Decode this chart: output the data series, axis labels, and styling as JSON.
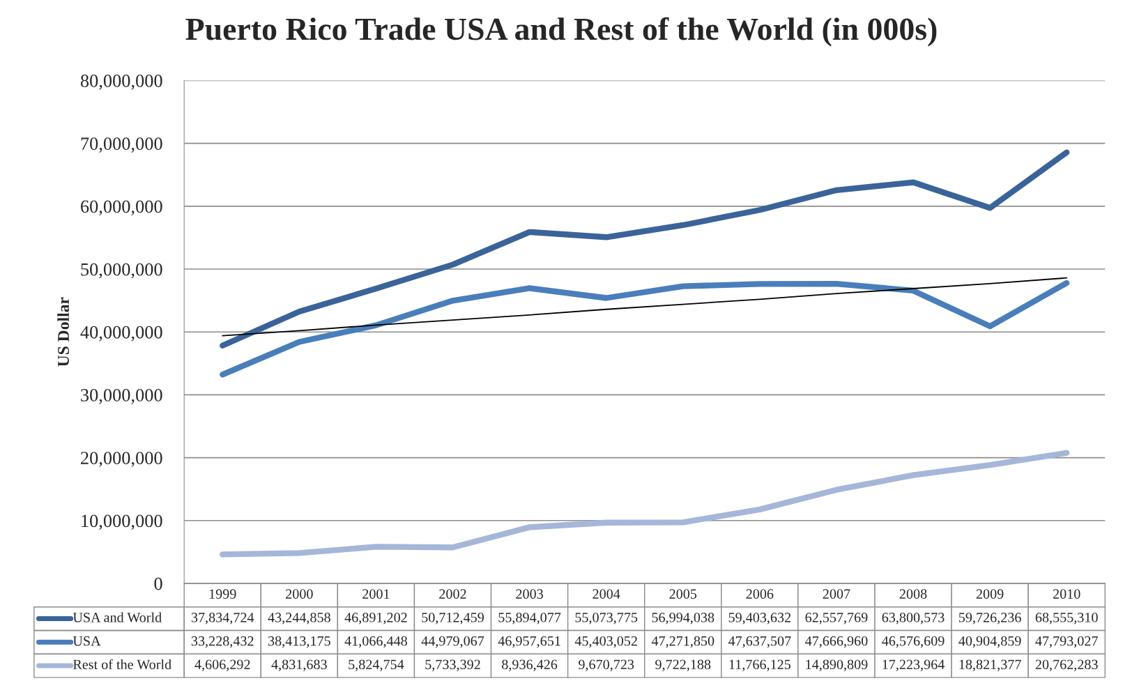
{
  "chart_data": {
    "type": "line",
    "title": "Puerto Rico Trade USA and Rest of the World (in 000s)",
    "ylabel": "US Dollar",
    "categories": [
      "1999",
      "2000",
      "2001",
      "2002",
      "2003",
      "2004",
      "2005",
      "2006",
      "2007",
      "2008",
      "2009",
      "2010"
    ],
    "series": [
      {
        "name": "USA and World",
        "color": "#3a6399",
        "values": [
          37834724,
          43244858,
          46891202,
          50712459,
          55894077,
          55073775,
          56994038,
          59403632,
          62557769,
          63800573,
          59726236,
          68555310
        ],
        "value_labels": [
          "37,834,724",
          "43,244,858",
          "46,891,202",
          "50,712,459",
          "55,894,077",
          "55,073,775",
          "56,994,038",
          "59,403,632",
          "62,557,769",
          "63,800,573",
          "59,726,236",
          "68,555,310"
        ]
      },
      {
        "name": "USA",
        "color": "#4a7ebb",
        "values": [
          33228432,
          38413175,
          41066448,
          44979067,
          46957651,
          45403052,
          47271850,
          47637507,
          47666960,
          46576609,
          40904859,
          47793027
        ],
        "value_labels": [
          "33,228,432",
          "38,413,175",
          "41,066,448",
          "44,979,067",
          "46,957,651",
          "45,403,052",
          "47,271,850",
          "47,637,507",
          "47,666,960",
          "46,576,609",
          "40,904,859",
          "47,793,027"
        ]
      },
      {
        "name": "Rest of the World",
        "color": "#a5b6d9",
        "values": [
          4606292,
          4831683,
          5824754,
          5733392,
          8936426,
          9670723,
          9722188,
          11766125,
          14890809,
          17223964,
          18821377,
          20762283
        ],
        "value_labels": [
          "4,606,292",
          "4,831,683",
          "5,824,754",
          "5,733,392",
          "8,936,426",
          "9,670,723",
          "9,722,188",
          "11,766,125",
          "14,890,809",
          "17,223,964",
          "18,821,377",
          "20,762,283"
        ]
      },
      {
        "color": "#000000",
        "type": "line",
        "values": [
          39400000,
          40200000,
          41100000,
          41900000,
          42700000,
          43600000,
          44400000,
          45200000,
          46100000,
          46900000,
          47700000,
          48600000
        ]
      }
    ],
    "ylim": [
      0,
      80000000
    ],
    "yticks": [
      {
        "value": 0,
        "label": "0"
      },
      {
        "value": 10000000,
        "label": "10,000,000"
      },
      {
        "value": 20000000,
        "label": "20,000,000"
      },
      {
        "value": 30000000,
        "label": "30,000,000"
      },
      {
        "value": 40000000,
        "label": "40,000,000"
      },
      {
        "value": 50000000,
        "label": "50,000,000"
      },
      {
        "value": 60000000,
        "label": "60,000,000"
      },
      {
        "value": 70000000,
        "label": "70,000,000"
      },
      {
        "value": 80000000,
        "label": "80,000,000"
      }
    ],
    "grid": "y",
    "tick_labels": "y",
    "legend": "bottom"
  }
}
